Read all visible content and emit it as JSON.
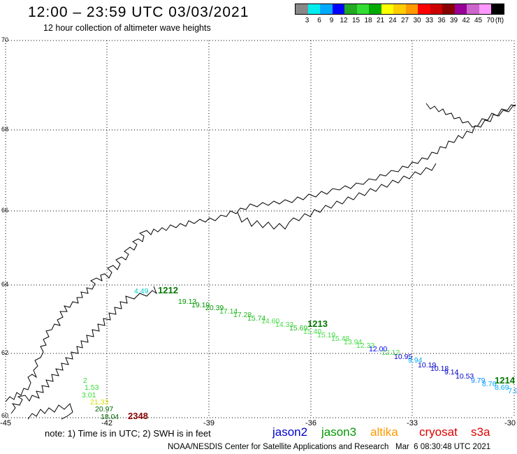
{
  "header": {
    "title": "12:00 – 23:59 UTC 03/03/2021",
    "subtitle": "12 hour collection of altimeter wave heights"
  },
  "legend": {
    "unit": "(ft)",
    "colors": [
      "#888888",
      "#00eeee",
      "#00aaff",
      "#0000ff",
      "#22aa22",
      "#33dd33",
      "#00aa00",
      "#ffff00",
      "#ffcc00",
      "#ff9900",
      "#ff0000",
      "#cc0000",
      "#880000",
      "#990099",
      "#cc66cc",
      "#ff99ff",
      "#000000"
    ],
    "labels": [
      "3",
      "6",
      "9",
      "12",
      "15",
      "18",
      "21",
      "24",
      "27",
      "30",
      "33",
      "36",
      "39",
      "42",
      "45",
      "70"
    ]
  },
  "map": {
    "lon_ticks": [
      "-45",
      "-42",
      "-39",
      "-36",
      "-33",
      "-30"
    ],
    "lat_ticks": [
      "70",
      "68",
      "66",
      "64",
      "62",
      "60"
    ],
    "track_times": [
      {
        "text": "1212",
        "color": "#007700"
      },
      {
        "text": "1213",
        "color": "#007700"
      },
      {
        "text": "1214",
        "color": "#007700"
      },
      {
        "text": "2348",
        "color": "#880000"
      }
    ],
    "wave_labels": [
      {
        "text": "4.49",
        "color": "#00cccc"
      },
      {
        "text": "19.13",
        "color": "#009900"
      },
      {
        "text": "19.19",
        "color": "#009900"
      },
      {
        "text": "20.39",
        "color": "#009900"
      },
      {
        "text": "17.14",
        "color": "#22bb22"
      },
      {
        "text": "17.28",
        "color": "#22bb22"
      },
      {
        "text": "15.74",
        "color": "#22bb22"
      },
      {
        "text": "14.60",
        "color": "#44dd44"
      },
      {
        "text": "14.33",
        "color": "#44dd44"
      },
      {
        "text": "15.69",
        "color": "#22bb22"
      },
      {
        "text": "15.40",
        "color": "#44dd44"
      },
      {
        "text": "15.19",
        "color": "#44dd44"
      },
      {
        "text": "15.48",
        "color": "#44dd44"
      },
      {
        "text": "13.94",
        "color": "#44dd44"
      },
      {
        "text": "12.33",
        "color": "#44dd44"
      },
      {
        "text": "12.00",
        "color": "#0000ff"
      },
      {
        "text": "12.12",
        "color": "#44dd44"
      },
      {
        "text": "10.95",
        "color": "#0000cc"
      },
      {
        "text": "9.94",
        "color": "#00aaff"
      },
      {
        "text": "10.19",
        "color": "#0000cc"
      },
      {
        "text": "10.18",
        "color": "#0000cc"
      },
      {
        "text": "9.14",
        "color": "#0000cc"
      },
      {
        "text": "10.53",
        "color": "#0000cc"
      },
      {
        "text": "9.79",
        "color": "#0088ff"
      },
      {
        "text": "8.76",
        "color": "#00aaff"
      },
      {
        "text": "8.69",
        "color": "#00aaff"
      },
      {
        "text": "7.9",
        "color": "#00aaff"
      },
      {
        "text": "2",
        "color": "#33dd33"
      },
      {
        "text": "1.53",
        "color": "#33dd33"
      },
      {
        "text": "3.01",
        "color": "#33dd33"
      },
      {
        "text": "21.33",
        "color": "#dddd00"
      },
      {
        "text": "20.97",
        "color": "#006600"
      },
      {
        "text": "18.04",
        "color": "#006600"
      }
    ]
  },
  "footer": {
    "note": "note: 1) Time is in UTC; 2) SWH is in feet",
    "satellites": [
      {
        "name": "jason2",
        "color": "#0000cc"
      },
      {
        "name": "jason3",
        "color": "#009900"
      },
      {
        "name": "altika",
        "color": "#ff9900"
      },
      {
        "name": "cryosat",
        "color": "#dd0000"
      },
      {
        "name": "s3a",
        "color": "#dd0000"
      }
    ],
    "credit": "NOAA/NESDIS Center for Satellite Applications and Research   Mar  6 08:30:48 UTC 2021"
  }
}
